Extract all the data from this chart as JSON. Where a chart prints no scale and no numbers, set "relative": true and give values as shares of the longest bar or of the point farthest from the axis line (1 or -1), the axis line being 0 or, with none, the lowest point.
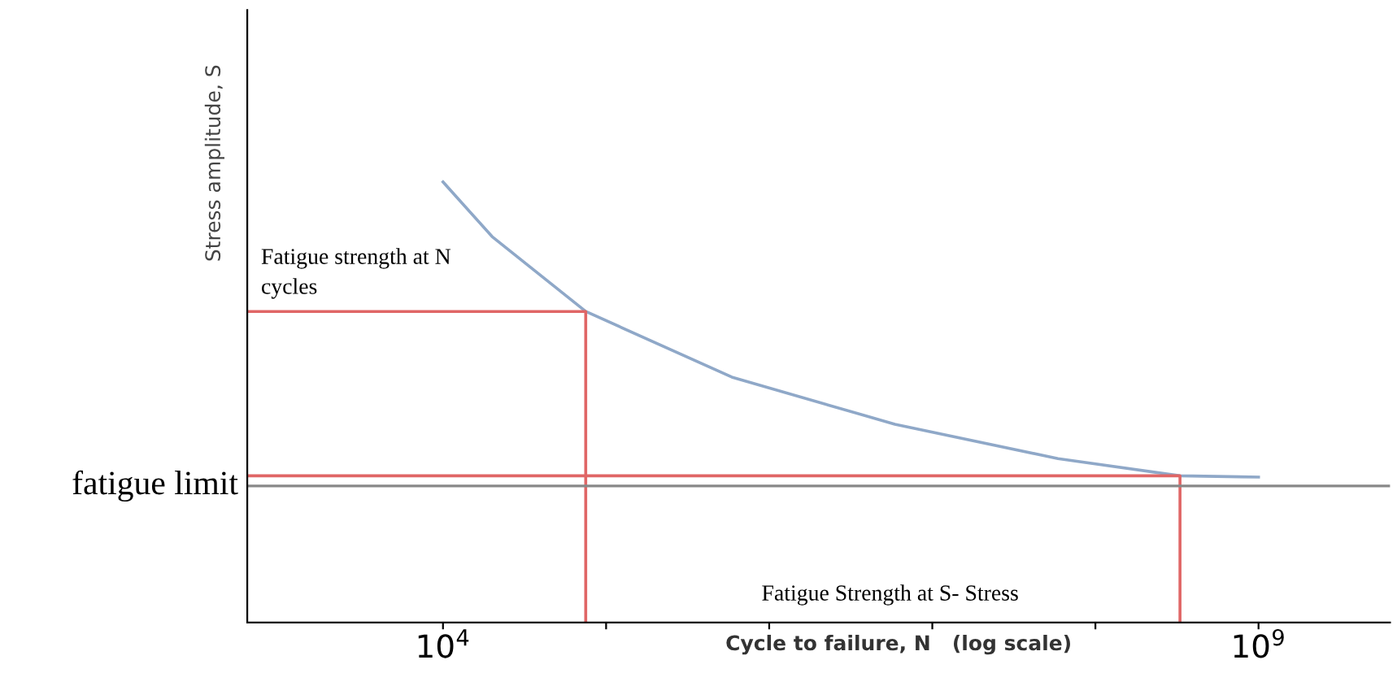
{
  "chart_data": {
    "type": "line",
    "relative": true,
    "log": "x",
    "xlabel": "Cycle to failure, N   (log scale)",
    "ylabel": "Stress amplitude, S",
    "xlim": [
      631,
      6400000000
    ],
    "xticks": [
      {
        "value": 10000,
        "label": "10$^{4}$"
      },
      {
        "value": 100000,
        "label": null
      },
      {
        "value": 1000000,
        "label": null
      },
      {
        "value": 10000000,
        "label": null
      },
      {
        "value": 100000000,
        "label": null
      },
      {
        "value": 1000000000,
        "label": "10$^{9}$"
      }
    ],
    "grid": false,
    "legend": false,
    "marker": "none",
    "line_style": "solid",
    "series": [
      {
        "color": "#8fa8c8",
        "x": [
          10000,
          20000,
          75000,
          590000,
          5900000,
          59000000,
          330000000,
          1000000000
        ],
        "values": [
          1.0,
          0.876,
          0.706,
          0.557,
          0.45,
          0.372,
          0.333,
          0.33
        ]
      },
      {
        "color": "#e06666",
        "x": [
          631,
          75000,
          75000
        ],
        "values": [
          0.706,
          0.706,
          0
        ]
      },
      {
        "color": "#e06666",
        "x": [
          631,
          330000000,
          330000000
        ],
        "values": [
          0.333,
          0.333,
          0
        ]
      }
    ],
    "ref_lines": [
      {
        "axis": "y",
        "value": 0.31,
        "label": "fatigue limit",
        "color": "#888888"
      }
    ],
    "annotations": [
      "Fatigue strength at N\ncycles",
      "Fatigue Strength at S- Stress"
    ]
  }
}
